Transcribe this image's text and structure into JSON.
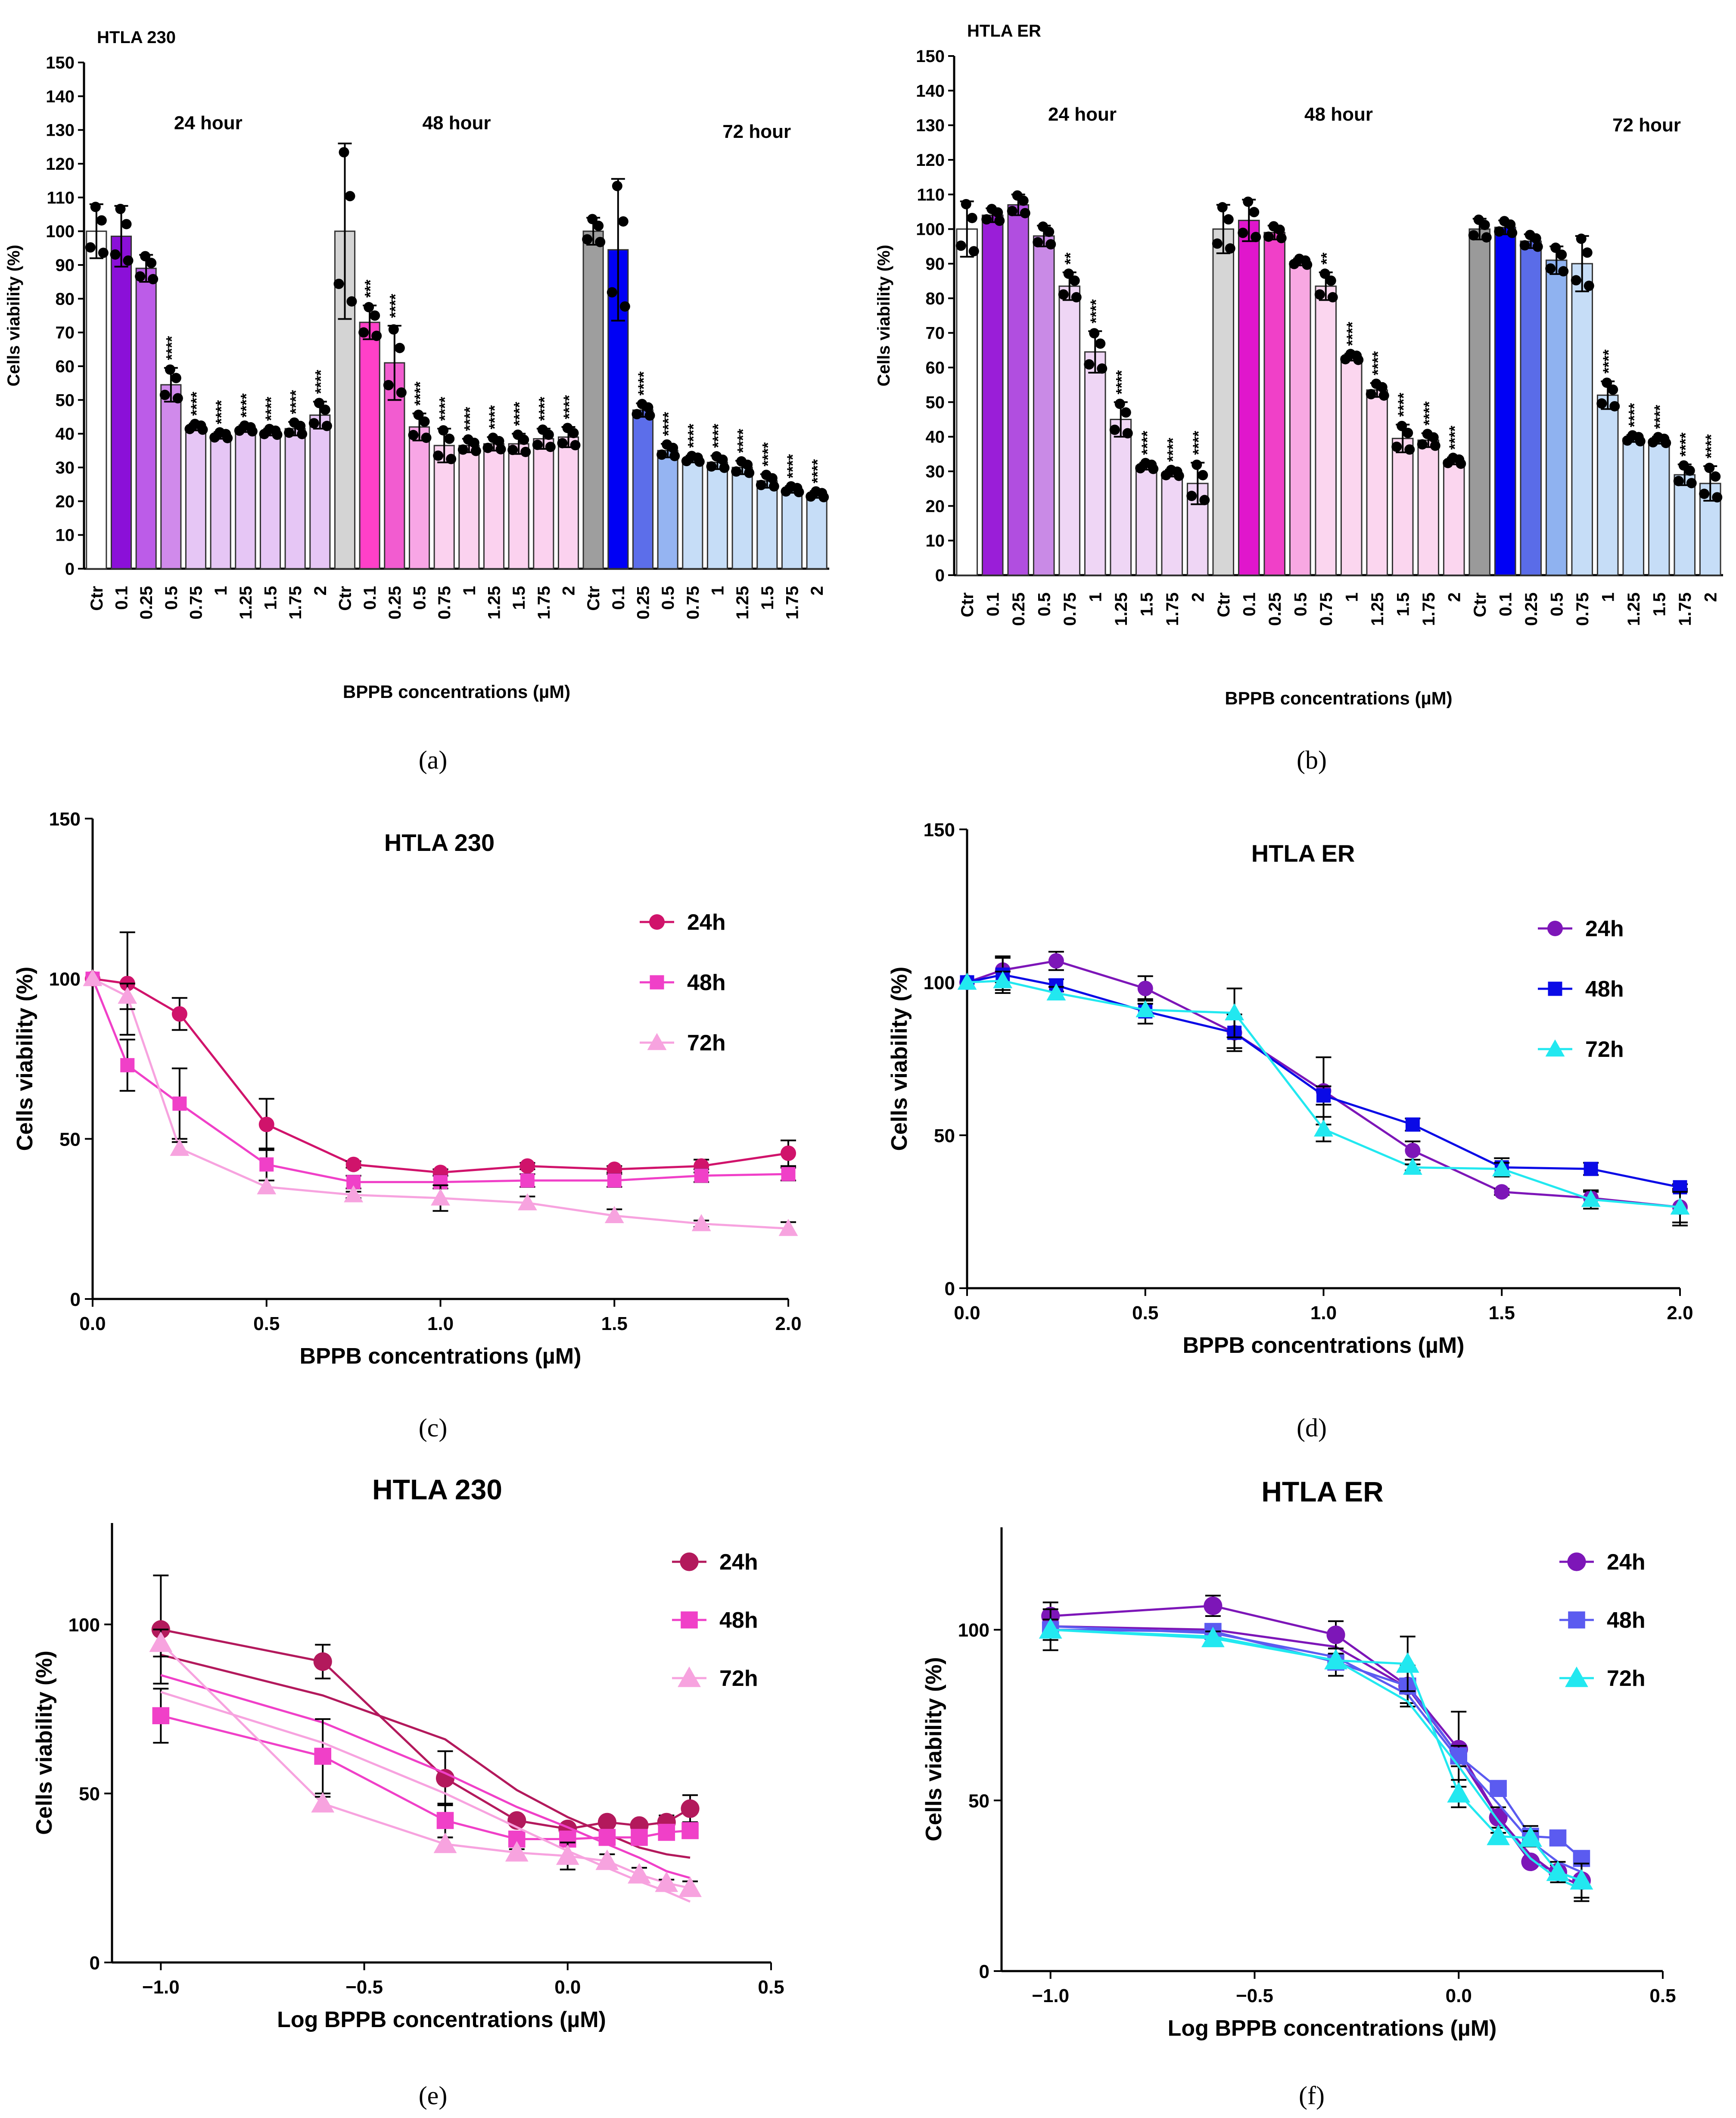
{
  "captions": [
    "(a)",
    "(b)",
    "(c)",
    "(d)",
    "(e)",
    "(f)"
  ],
  "chart_data": [
    {
      "type": "bar",
      "panel": "(a)",
      "title": "HTLA 230",
      "xlabel": "BPPB concentrations (µM)",
      "ylabel": "Cells viability (%)",
      "ylim": [
        0,
        150
      ],
      "yticks": [
        0,
        10,
        20,
        30,
        40,
        50,
        60,
        70,
        80,
        90,
        100,
        110,
        120,
        130,
        140,
        150
      ],
      "groups": [
        "24 hour",
        "48 hour",
        "72 hour"
      ],
      "categories": [
        "Ctr",
        "0.1",
        "0.25",
        "0.5",
        "0.75",
        "1",
        "1.25",
        "1.5",
        "1.75",
        "2",
        "Ctr",
        "0.1",
        "0.25",
        "0.5",
        "0.75",
        "1",
        "1.25",
        "1.5",
        "1.75",
        "2",
        "Ctr",
        "0.1",
        "0.25",
        "0.5",
        "0.75",
        "1",
        "1.25",
        "1.5",
        "1.75",
        "2"
      ],
      "values": [
        100,
        98.5,
        89,
        54.5,
        42,
        39.5,
        41.5,
        40.5,
        41.5,
        45.5,
        100,
        73,
        61,
        42,
        36.5,
        36.5,
        37,
        37,
        38.5,
        39,
        100,
        94.5,
        47,
        35,
        32.5,
        31.5,
        30,
        26,
        23.5,
        22
      ],
      "errors": [
        8,
        9,
        4,
        5,
        1,
        1,
        1,
        1,
        2,
        4,
        26,
        5,
        11,
        4,
        5,
        2,
        2,
        3,
        3,
        3,
        4,
        21,
        2,
        2,
        1,
        2,
        2,
        2,
        1,
        1
      ],
      "significance": [
        "",
        "",
        "",
        "****",
        "****",
        "****",
        "****",
        "****",
        "****",
        "****",
        "",
        "***",
        "****",
        "****",
        "****",
        "****",
        "****",
        "****",
        "****",
        "****",
        "",
        "",
        "****",
        "****",
        "****",
        "****",
        "****",
        "****",
        "****",
        "****"
      ],
      "colors": [
        "#ffffff",
        "#8b10d8",
        "#bc5ce8",
        "#d08aeb",
        "#e6c6f5",
        "#e6c6f5",
        "#e6c6f5",
        "#e6c6f5",
        "#e6c6f5",
        "#e6c6f5",
        "#d4d4d4",
        "#ff40c8",
        "#f25cd0",
        "#f8a6e6",
        "#fbd2ef",
        "#fbd2ef",
        "#fbd2ef",
        "#fbd2ef",
        "#fbd2ef",
        "#fbd2ef",
        "#9e9e9e",
        "#0000f5",
        "#5c6eea",
        "#95b4f2",
        "#c6ddf7",
        "#c6ddf7",
        "#c6ddf7",
        "#c6ddf7",
        "#c6ddf7",
        "#c6ddf7"
      ]
    },
    {
      "type": "bar",
      "panel": "(b)",
      "title": "HTLA ER",
      "xlabel": "BPPB concentrations (µM)",
      "ylabel": "Cells viability (%)",
      "ylim": [
        0,
        150
      ],
      "yticks": [
        0,
        10,
        20,
        30,
        40,
        50,
        60,
        70,
        80,
        90,
        100,
        110,
        120,
        130,
        140,
        150
      ],
      "groups": [
        "24 hour",
        "48 hour",
        "72 hour"
      ],
      "categories": [
        "Ctr",
        "0.1",
        "0.25",
        "0.5",
        "0.75",
        "1",
        "1.25",
        "1.5",
        "1.75",
        "2",
        "Ctr",
        "0.1",
        "0.25",
        "0.5",
        "0.75",
        "1",
        "1.25",
        "1.5",
        "1.75",
        "2",
        "Ctr",
        "0.1",
        "0.25",
        "0.5",
        "0.75",
        "1",
        "1.25",
        "1.5",
        "1.75",
        "2"
      ],
      "values": [
        100,
        104,
        107,
        98,
        83.5,
        64.5,
        45,
        31.5,
        29.5,
        26.5,
        100,
        102.5,
        99,
        90.5,
        83.5,
        63,
        53.5,
        39.5,
        39,
        33,
        100,
        100.5,
        96.5,
        91,
        90,
        52,
        39.5,
        39,
        29,
        26.5
      ],
      "errors": [
        8,
        2,
        3,
        3,
        4,
        6,
        5,
        1,
        1,
        6,
        7,
        6,
        2,
        1,
        4,
        1,
        2,
        4,
        2,
        1,
        3,
        2,
        2,
        4,
        8,
        4,
        1,
        1,
        3,
        5
      ],
      "significance": [
        "",
        "",
        "",
        "",
        "**",
        "****",
        "****",
        "****",
        "****",
        "****",
        "",
        "",
        "",
        "",
        "**",
        "****",
        "****",
        "****",
        "****",
        "****",
        "",
        "",
        "",
        "",
        "",
        "****",
        "****",
        "****",
        "****",
        "****"
      ],
      "colors": [
        "#ffffff",
        "#9a1ed8",
        "#b14ee0",
        "#c98ae6",
        "#efd6f5",
        "#efd6f5",
        "#efd6f5",
        "#efd6f5",
        "#efd6f5",
        "#efd6f5",
        "#d6d6d6",
        "#e016cc",
        "#f040c8",
        "#f8a8e2",
        "#fbd6ef",
        "#fbd6ef",
        "#fbd6ef",
        "#fbd6ef",
        "#fbd6ef",
        "#fbd6ef",
        "#9a9a9a",
        "#0000f5",
        "#5a6ce8",
        "#8fb2f0",
        "#c6ddf7",
        "#c6ddf7",
        "#c6ddf7",
        "#c6ddf7",
        "#c6ddf7",
        "#c6ddf7"
      ]
    },
    {
      "type": "line",
      "panel": "(c)",
      "title": "HTLA 230",
      "xlabel": "BPPB concentrations (µM)",
      "ylabel": "Cells viability (%)",
      "xlim": [
        0,
        2.0
      ],
      "ylim": [
        0,
        150
      ],
      "xticks": [
        "0.0",
        "0.5",
        "1.0",
        "1.5",
        "2.0"
      ],
      "yticks": [
        "0",
        "50",
        "100",
        "150"
      ],
      "legend": [
        "24h",
        "48h",
        "72h"
      ],
      "x": [
        0,
        0.1,
        0.25,
        0.5,
        0.75,
        1,
        1.25,
        1.5,
        1.75,
        2
      ],
      "series": [
        {
          "name": "24h",
          "color": "#d0136b",
          "marker": "circle",
          "values": [
            100,
            98.5,
            89,
            54.5,
            42,
            39.5,
            41.5,
            40.5,
            41.5,
            45.5
          ],
          "errors": [
            0,
            16,
            5,
            8,
            1,
            1,
            1,
            1,
            2,
            4
          ]
        },
        {
          "name": "48h",
          "color": "#f040c8",
          "marker": "square",
          "values": [
            100,
            73,
            61,
            42,
            36.5,
            36.5,
            37,
            37,
            38.5,
            39
          ],
          "errors": [
            0,
            8,
            11,
            5,
            2,
            2,
            2,
            2,
            2,
            2
          ]
        },
        {
          "name": "72h",
          "color": "#f7a3df",
          "marker": "triangle",
          "values": [
            100,
            94.5,
            47,
            35,
            32.5,
            31.5,
            30,
            26,
            23.5,
            22
          ],
          "errors": [
            0,
            4,
            2,
            2,
            1,
            4,
            2,
            2,
            1,
            2
          ]
        }
      ]
    },
    {
      "type": "line",
      "panel": "(d)",
      "title": "HTLA ER",
      "xlabel": "BPPB concentrations (µM)",
      "ylabel": "Cells viability (%)",
      "xlim": [
        0,
        2.0
      ],
      "ylim": [
        0,
        150
      ],
      "xticks": [
        "0.0",
        "0.5",
        "1.0",
        "1.5",
        "2.0"
      ],
      "yticks": [
        "0",
        "50",
        "100",
        "150"
      ],
      "legend": [
        "24h",
        "48h",
        "72h"
      ],
      "x": [
        0,
        0.1,
        0.25,
        0.5,
        0.75,
        1,
        1.25,
        1.5,
        1.75,
        2
      ],
      "series": [
        {
          "name": "24h",
          "color": "#7d16b8",
          "marker": "circle",
          "values": [
            100,
            104,
            107,
            98,
            83.5,
            64.5,
            45,
            31.5,
            29.5,
            26.5
          ],
          "errors": [
            0,
            4,
            3,
            4,
            5,
            11,
            3,
            1,
            2,
            6
          ]
        },
        {
          "name": "48h",
          "color": "#0a0ae6",
          "marker": "square",
          "values": [
            100,
            102.5,
            99,
            90.5,
            83.5,
            63,
            53.5,
            39.5,
            39,
            33
          ],
          "errors": [
            0,
            6,
            2,
            4,
            6,
            3,
            2,
            3,
            2,
            1
          ]
        },
        {
          "name": "72h",
          "color": "#22e8f0",
          "marker": "triangle",
          "values": [
            100,
            100.5,
            96.5,
            91,
            90,
            52,
            39.5,
            39,
            29,
            26.5
          ],
          "errors": [
            0,
            3,
            2,
            2,
            8,
            4,
            1,
            2,
            3,
            5
          ]
        }
      ]
    },
    {
      "type": "line",
      "panel": "(e)",
      "title": "HTLA 230",
      "xlabel": "Log BPPB concentrations (µM)",
      "ylabel": "Cells viability (%)",
      "xlim": [
        -1.12,
        0.5
      ],
      "ylim": [
        0,
        130
      ],
      "xticks": [
        "-1.0",
        "-0.5",
        "0.0",
        "0.5"
      ],
      "yticks": [
        "0",
        "50",
        "100"
      ],
      "legend": [
        "24h",
        "48h",
        "72h"
      ],
      "x": [
        -1.0,
        -0.602,
        -0.301,
        -0.125,
        0.0,
        0.097,
        0.176,
        0.243,
        0.301
      ],
      "series": [
        {
          "name": "24h",
          "color": "#b3195c",
          "marker": "circle",
          "values": [
            98.5,
            89,
            54.5,
            42,
            39.5,
            41.5,
            40.5,
            41.5,
            45.5
          ],
          "errors": [
            16,
            5,
            8,
            1,
            1,
            1,
            1,
            2,
            4
          ],
          "fit": [
            91,
            79,
            66,
            51,
            43,
            38,
            34,
            32,
            31
          ]
        },
        {
          "name": "48h",
          "color": "#f040c8",
          "marker": "square",
          "values": [
            73,
            61,
            42,
            36.5,
            36.5,
            37,
            37,
            38.5,
            39
          ],
          "errors": [
            8,
            11,
            5,
            2,
            2,
            2,
            2,
            2,
            2
          ],
          "fit": [
            85,
            71,
            56,
            46,
            40,
            35,
            31,
            27,
            25
          ]
        },
        {
          "name": "72h",
          "color": "#f7a3df",
          "marker": "triangle",
          "values": [
            94.5,
            47,
            35,
            32.5,
            31.5,
            30,
            26,
            23.5,
            22
          ],
          "errors": [
            4,
            2,
            2,
            1,
            4,
            2,
            2,
            1,
            2
          ],
          "fit": [
            80,
            65,
            50,
            40,
            33,
            28,
            24,
            21,
            18
          ]
        }
      ]
    },
    {
      "type": "line",
      "panel": "(f)",
      "title": "HTLA ER",
      "xlabel": "Log BPPB concentrations (µM)",
      "ylabel": "Cells viability (%)",
      "xlim": [
        -1.12,
        0.5
      ],
      "ylim": [
        0,
        130
      ],
      "xticks": [
        "-1.0",
        "-0.5",
        "0.0",
        "0.5"
      ],
      "yticks": [
        "0",
        "50",
        "100"
      ],
      "legend": [
        "24h",
        "48h",
        "72h"
      ],
      "x": [
        -1.0,
        -0.602,
        -0.301,
        -0.125,
        0.0,
        0.097,
        0.176,
        0.243,
        0.301
      ],
      "series": [
        {
          "name": "24h",
          "color": "#7d16b8",
          "marker": "circle",
          "values": [
            104,
            107,
            98.5,
            83.5,
            65,
            45,
            32,
            29,
            26.5
          ],
          "errors": [
            4,
            3,
            4,
            5,
            11,
            3,
            1,
            2,
            6
          ],
          "fit": [
            101,
            100,
            95,
            83,
            63,
            45,
            34,
            28,
            25
          ]
        },
        {
          "name": "48h",
          "color": "#5b5bf0",
          "marker": "square",
          "values": [
            100,
            99.5,
            90.5,
            83.5,
            63,
            53.5,
            39.5,
            39,
            33
          ],
          "errors": [
            6,
            2,
            4,
            6,
            3,
            2,
            3,
            2,
            1
          ],
          "fit": [
            101,
            99,
            92,
            81,
            62,
            49,
            38,
            32,
            29
          ]
        },
        {
          "name": "72h",
          "color": "#22e8f0",
          "marker": "triangle",
          "values": [
            100,
            97.5,
            91,
            90,
            52,
            39.5,
            39,
            29,
            26.5
          ],
          "errors": [
            3,
            2,
            2,
            8,
            4,
            1,
            2,
            3,
            5
          ],
          "fit": [
            100,
            98,
            91,
            79,
            60,
            44,
            33,
            27,
            24
          ]
        }
      ]
    }
  ]
}
